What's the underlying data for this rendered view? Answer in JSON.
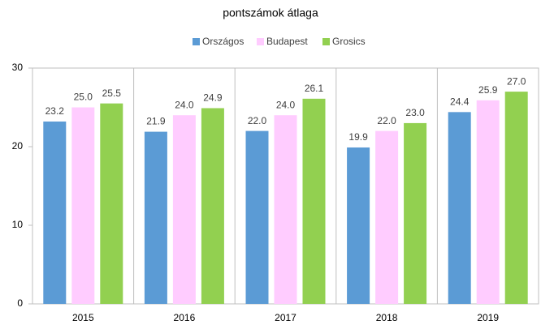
{
  "chart_data": {
    "type": "bar",
    "title": "pontszámok átlaga",
    "categories": [
      "2015",
      "2016",
      "2017",
      "2018",
      "2019"
    ],
    "series": [
      {
        "name": "Országos",
        "color": "#5b9bd5",
        "values": [
          23.2,
          21.9,
          22.0,
          19.9,
          24.4
        ],
        "value_labels": [
          "23.2",
          "21.9",
          "22.0",
          "19.9",
          "24.4"
        ]
      },
      {
        "name": "Budapest",
        "color": "#ffccff",
        "values": [
          25.0,
          24.0,
          24.0,
          22.0,
          25.9
        ],
        "value_labels": [
          "25.0",
          "24.0",
          "24.0",
          "22.0",
          "25.9"
        ]
      },
      {
        "name": "Grosics",
        "color": "#92d050",
        "values": [
          25.5,
          24.9,
          26.1,
          23.0,
          27.0
        ],
        "value_labels": [
          "25.5",
          "24.9",
          "26.1",
          "23.0",
          "27.0"
        ]
      }
    ],
    "ylim": [
      0,
      30
    ],
    "yticks": [
      0,
      10,
      20,
      30
    ],
    "legend": "top"
  }
}
